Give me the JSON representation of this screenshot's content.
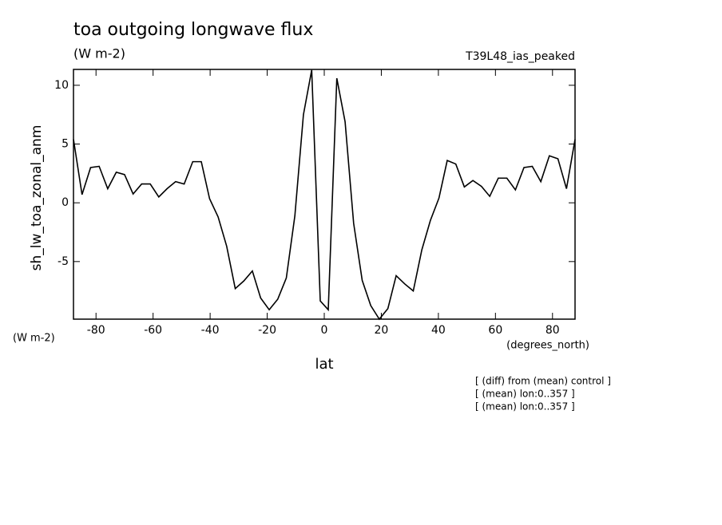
{
  "chart_data": {
    "type": "line",
    "title": "toa outgoing longwave flux",
    "subtitle": "(W m-2)",
    "run_label": "T39L48_ias_peaked",
    "ylabel": "sh_lw_toa_zonal_anm",
    "y_units": "(W m-2)",
    "xlabel": "lat",
    "x_units": "(degrees_north)",
    "notes": [
      "[ (diff) from (mean) control ]",
      "[ (mean) lon:0..357 ]",
      "[ (mean) lon:0..357 ]"
    ],
    "color": "#000000",
    "x": [
      -87.9,
      -84.9,
      -81.9,
      -78.9,
      -75.9,
      -72.9,
      -70.0,
      -67.0,
      -64.0,
      -61.0,
      -58.0,
      -55.1,
      -52.1,
      -49.1,
      -46.1,
      -43.1,
      -40.2,
      -37.2,
      -34.2,
      -31.2,
      -28.2,
      -25.2,
      -22.3,
      -19.3,
      -16.3,
      -13.3,
      -10.3,
      -7.3,
      -4.4,
      -1.4,
      1.4,
      4.4,
      7.3,
      10.3,
      13.3,
      16.3,
      19.3,
      22.3,
      25.2,
      28.2,
      31.2,
      34.2,
      37.2,
      40.2,
      43.1,
      46.1,
      49.1,
      52.1,
      55.1,
      58.0,
      61.0,
      64.0,
      67.0,
      70.0,
      72.9,
      75.9,
      78.9,
      81.9,
      84.9,
      87.9
    ],
    "values": [
      5.4,
      0.7,
      3.0,
      3.1,
      1.2,
      2.6,
      2.4,
      0.75,
      1.6,
      1.6,
      0.5,
      1.2,
      1.8,
      1.6,
      3.5,
      3.5,
      0.35,
      -1.2,
      -3.7,
      -7.3,
      -6.65,
      -5.8,
      -8.1,
      -9.1,
      -8.2,
      -6.4,
      -1.1,
      7.5,
      11.3,
      -8.35,
      -9.1,
      10.6,
      6.9,
      -1.75,
      -6.6,
      -8.75,
      -9.9,
      -9.0,
      -6.2,
      -6.9,
      -7.5,
      -4.0,
      -1.5,
      0.4,
      3.6,
      3.3,
      1.35,
      1.9,
      1.4,
      0.55,
      2.1,
      2.1,
      1.1,
      3.0,
      3.1,
      1.8,
      4.0,
      3.75,
      1.2,
      5.4
    ],
    "xlim": [
      -87.9,
      87.9
    ],
    "xticks": [
      -80,
      -60,
      -40,
      -20,
      0,
      20,
      40,
      60,
      80
    ],
    "ylim": [
      -9.9,
      11.35
    ],
    "yticks": [
      -5,
      0,
      5,
      10
    ]
  }
}
